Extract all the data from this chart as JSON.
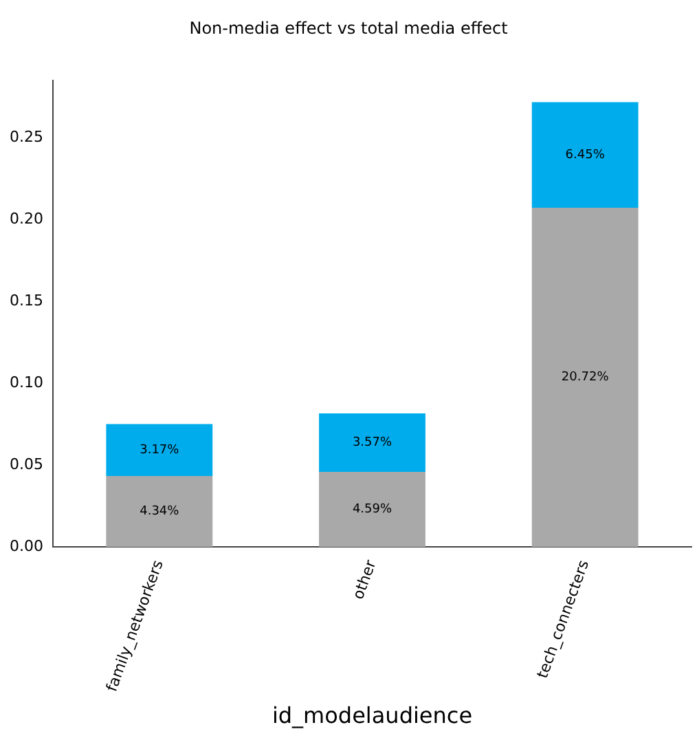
{
  "chart_data": {
    "type": "bar",
    "title": "Non-media effect vs total media effect",
    "xlabel": "id_modelaudience",
    "categories": [
      "family_networkers",
      "other",
      "tech_connecters"
    ],
    "stacked": true,
    "series": [
      {
        "color": "#a9a9a9",
        "values": [
          0.0434,
          0.0459,
          0.2072
        ],
        "value_labels": [
          "4.34%",
          "4.59%",
          "20.72%"
        ]
      },
      {
        "color": "#00acec",
        "values": [
          0.0317,
          0.0357,
          0.0645
        ],
        "value_labels": [
          "3.17%",
          "3.57%",
          "6.45%"
        ]
      }
    ],
    "ylim": [
      0,
      0.285
    ],
    "yticks": [
      "0.00",
      "0.05",
      "0.10",
      "0.15",
      "0.20",
      "0.25"
    ],
    "grid": false,
    "legend": false
  }
}
